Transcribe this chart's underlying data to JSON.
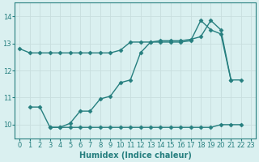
{
  "title": "",
  "xlabel": "Humidex (Indice chaleur)",
  "ylabel": "",
  "xlim": [
    -0.5,
    23.5
  ],
  "ylim": [
    9.5,
    14.5
  ],
  "yticks": [
    10,
    11,
    12,
    13,
    14
  ],
  "xticks": [
    0,
    1,
    2,
    3,
    4,
    5,
    6,
    7,
    8,
    9,
    10,
    11,
    12,
    13,
    14,
    15,
    16,
    17,
    18,
    19,
    20,
    21,
    22,
    23
  ],
  "bg_color": "#daf0f0",
  "grid_color": "#c8dede",
  "line_color": "#267f7f",
  "line1_x": [
    0,
    1,
    2,
    3,
    4,
    5,
    6,
    7,
    8,
    9,
    10,
    11,
    12,
    13,
    14,
    15,
    16,
    17,
    18,
    19,
    20,
    21
  ],
  "line1_y": [
    12.8,
    12.65,
    12.65,
    12.65,
    12.65,
    12.65,
    12.65,
    12.65,
    12.65,
    12.65,
    12.75,
    13.05,
    13.05,
    13.05,
    13.05,
    13.05,
    13.05,
    13.1,
    13.85,
    13.5,
    13.35,
    11.65
  ],
  "line2_x": [
    1,
    2,
    3,
    4,
    5,
    6,
    7,
    8,
    9,
    10,
    11,
    12,
    13,
    14,
    15,
    16,
    17,
    18,
    19,
    20,
    21,
    22
  ],
  "line2_y": [
    10.65,
    10.65,
    9.9,
    9.9,
    10.05,
    10.5,
    10.5,
    10.95,
    11.05,
    11.55,
    11.65,
    12.65,
    13.05,
    13.1,
    13.1,
    13.1,
    13.15,
    13.25,
    13.85,
    13.5,
    11.65,
    11.65
  ],
  "line3_x": [
    3,
    4,
    5,
    6,
    7,
    8,
    9,
    10,
    11,
    12,
    13,
    14,
    15,
    16,
    17,
    18,
    19,
    20,
    21,
    22
  ],
  "line3_y": [
    9.9,
    9.9,
    9.9,
    9.9,
    9.9,
    9.9,
    9.9,
    9.9,
    9.9,
    9.9,
    9.9,
    9.9,
    9.9,
    9.9,
    9.9,
    9.9,
    9.9,
    10.0,
    10.0,
    10.0
  ],
  "marker": "D",
  "markersize": 2.5,
  "linewidth": 1.0,
  "tick_fontsize": 6,
  "label_fontsize": 7
}
